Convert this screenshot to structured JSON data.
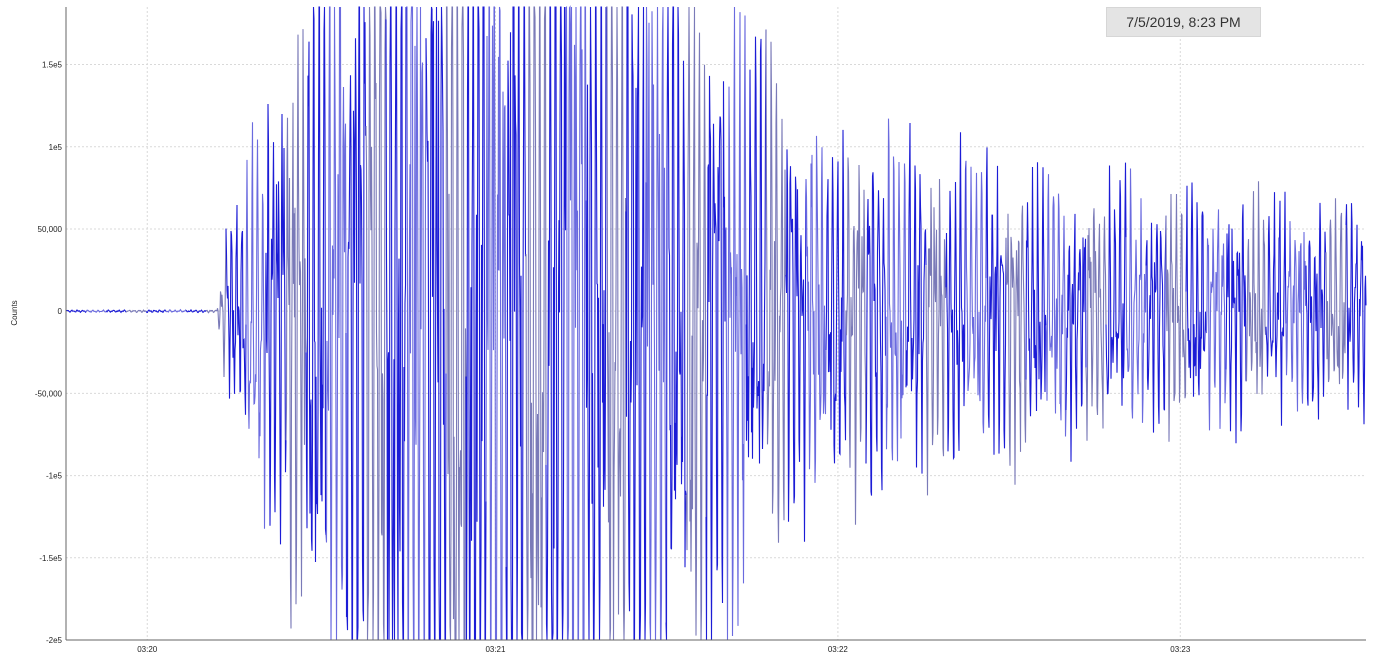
{
  "timestamp": "7/5/2019, 8:23 PM",
  "chart_data": {
    "type": "line",
    "title": "",
    "xlabel": "",
    "ylabel": "Counts",
    "grid": true,
    "xticks": [
      "03:20",
      "03:21",
      "03:22",
      "03:23"
    ],
    "yticks": [
      {
        "label": "1.5e5",
        "value": 150000
      },
      {
        "label": "1e5",
        "value": 100000
      },
      {
        "label": "50,000",
        "value": 50000
      },
      {
        "label": "0",
        "value": 0
      },
      {
        "label": "-50,000",
        "value": -50000
      },
      {
        "label": "-1e5",
        "value": -100000
      },
      {
        "label": "-1.5e5",
        "value": -150000
      },
      {
        "label": "-2e5",
        "value": -200000
      }
    ],
    "ylim": [
      -200000,
      185000
    ],
    "xlim_seconds": [
      0,
      224
    ],
    "series": [
      {
        "color": "#1c1cd6",
        "description": "seismic waveform: quiet near 0 until ~03:20:26, large clipped oscillations from ~03:20:30 to ~03:22:00, then decaying coda to about ±50,000",
        "envelope_seconds": [
          0,
          26,
          27,
          30,
          60,
          90,
          108,
          130,
          160,
          180,
          200,
          224
        ],
        "envelope_counts": [
          800,
          800,
          40000,
          80000,
          420000,
          420000,
          230000,
          120000,
          95000,
          80000,
          70000,
          65000
        ]
      }
    ]
  }
}
